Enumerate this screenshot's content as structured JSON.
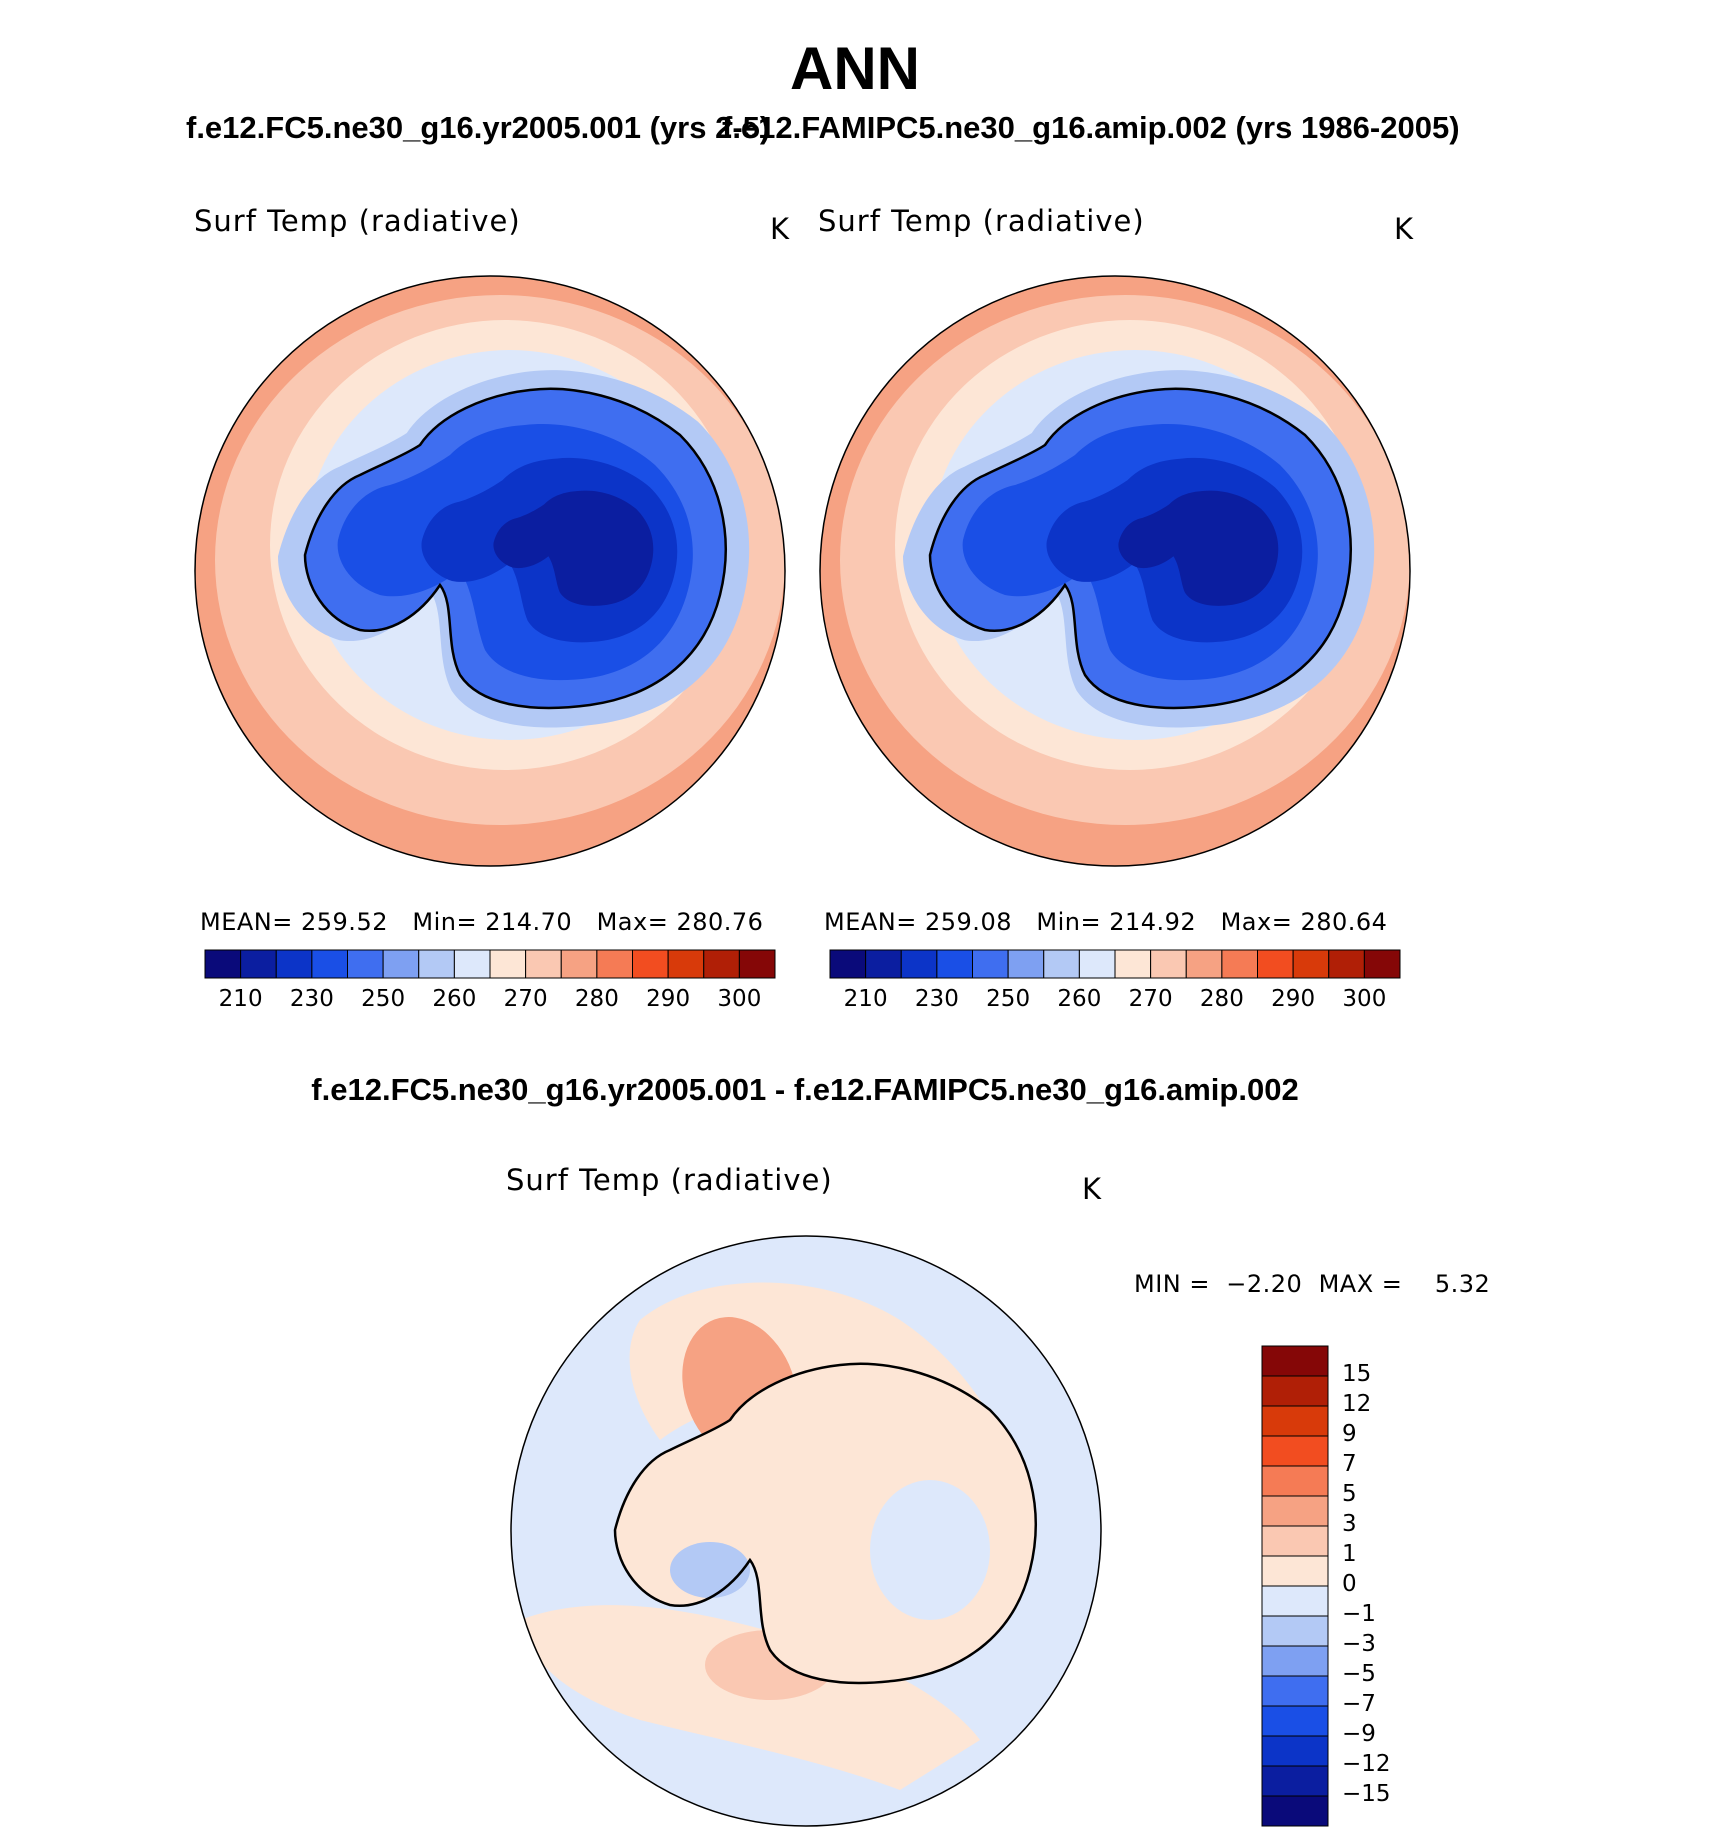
{
  "figure": {
    "season": "ANN",
    "case1_title": "f.e12.FC5.ne30_g16.yr2005.001 (yrs 2-5)",
    "case2_title": "f.e12.FAMIPC5.ne30_g16.amip.002 (yrs 1986-2005)",
    "diff_title": "f.e12.FC5.ne30_g16.yr2005.001 - f.e12.FAMIPC5.ne30_g16.amip.002"
  },
  "panels": [
    {
      "variable": "Surf Temp (radiative)",
      "units": "K",
      "stats": {
        "mean_label": "MEAN=",
        "mean": "259.52",
        "min_label": "Min=",
        "min": "214.70",
        "max_label": "Max=",
        "max": "280.76"
      }
    },
    {
      "variable": "Surf Temp (radiative)",
      "units": "K",
      "stats": {
        "mean_label": "MEAN=",
        "mean": "259.08",
        "min_label": "Min=",
        "min": "214.92",
        "max_label": "Max=",
        "max": "280.64"
      }
    },
    {
      "variable": "Surf Temp (radiative)",
      "units": "K",
      "stats": {
        "min_label": "MIN =",
        "min": "−2.20",
        "max_label": "MAX =",
        "max": "5.32"
      }
    }
  ],
  "colorbars": {
    "absolute": {
      "tick_labels": [
        "210",
        "230",
        "250",
        "260",
        "270",
        "280",
        "290",
        "300"
      ],
      "colors": [
        "#0a0a7a",
        "#0b1ea0",
        "#0c34c8",
        "#1a4fe6",
        "#3f6ef0",
        "#7ea0f2",
        "#b3c9f5",
        "#dde8fb",
        "#fde6d6",
        "#fac8b2",
        "#f6a283",
        "#f57b55",
        "#f24d20",
        "#d83a0a",
        "#b01f06",
        "#850707"
      ]
    },
    "difference": {
      "tick_labels": [
        "15",
        "12",
        "9",
        "7",
        "5",
        "3",
        "1",
        "0",
        "−1",
        "−3",
        "−5",
        "−7",
        "−9",
        "−12",
        "−15"
      ],
      "colors": [
        "#850707",
        "#b01f06",
        "#d83a0a",
        "#f24d20",
        "#f57b55",
        "#f6a283",
        "#fac8b2",
        "#fde6d6",
        "#dde8fb",
        "#b3c9f5",
        "#7ea0f2",
        "#3f6ef0",
        "#1a4fe6",
        "#0c34c8",
        "#0b1ea0",
        "#0a0a7a"
      ]
    }
  }
}
